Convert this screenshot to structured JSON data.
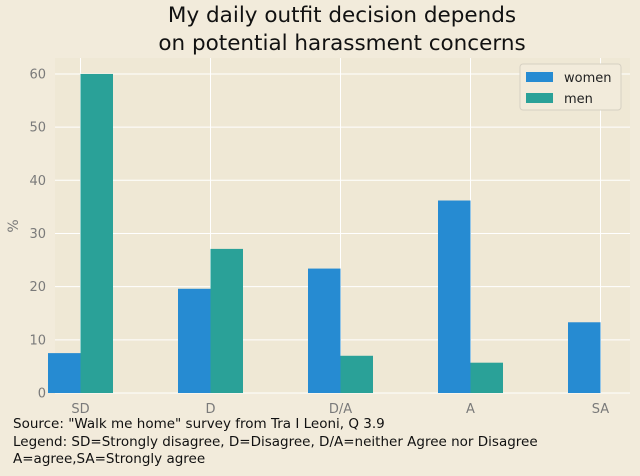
{
  "chart_data": {
    "type": "bar",
    "title": [
      "My daily outfit decision depends",
      "on potential harassment concerns"
    ],
    "categories": [
      "SD",
      "D",
      "D/A",
      "A",
      "SA"
    ],
    "series": [
      {
        "name": "women",
        "values": [
          7.5,
          19.6,
          23.4,
          36.2,
          13.3
        ],
        "color": "#268bd2"
      },
      {
        "name": "men",
        "values": [
          60.0,
          27.1,
          7.0,
          5.7,
          0.0
        ],
        "color": "#2aa198"
      }
    ],
    "xlabel": "",
    "ylabel": "%",
    "ylim": [
      0,
      63
    ],
    "yticks": [
      0,
      10,
      20,
      30,
      40,
      50,
      60
    ],
    "grid": true,
    "legend": "top-right"
  },
  "caption": [
    "Source: \"Walk me home\" survey from Tra I Leoni, Q 3.9",
    "Legend: SD=Strongly disagree, D=Disagree, D/A=neither Agree nor Disagree",
    "A=agree,SA=Strongly agree"
  ],
  "colors": {
    "background": "#f2ebdb",
    "plot_area": "#efe8d5",
    "grid": "#ffffff",
    "women": "#268bd2",
    "men": "#2aa198"
  }
}
